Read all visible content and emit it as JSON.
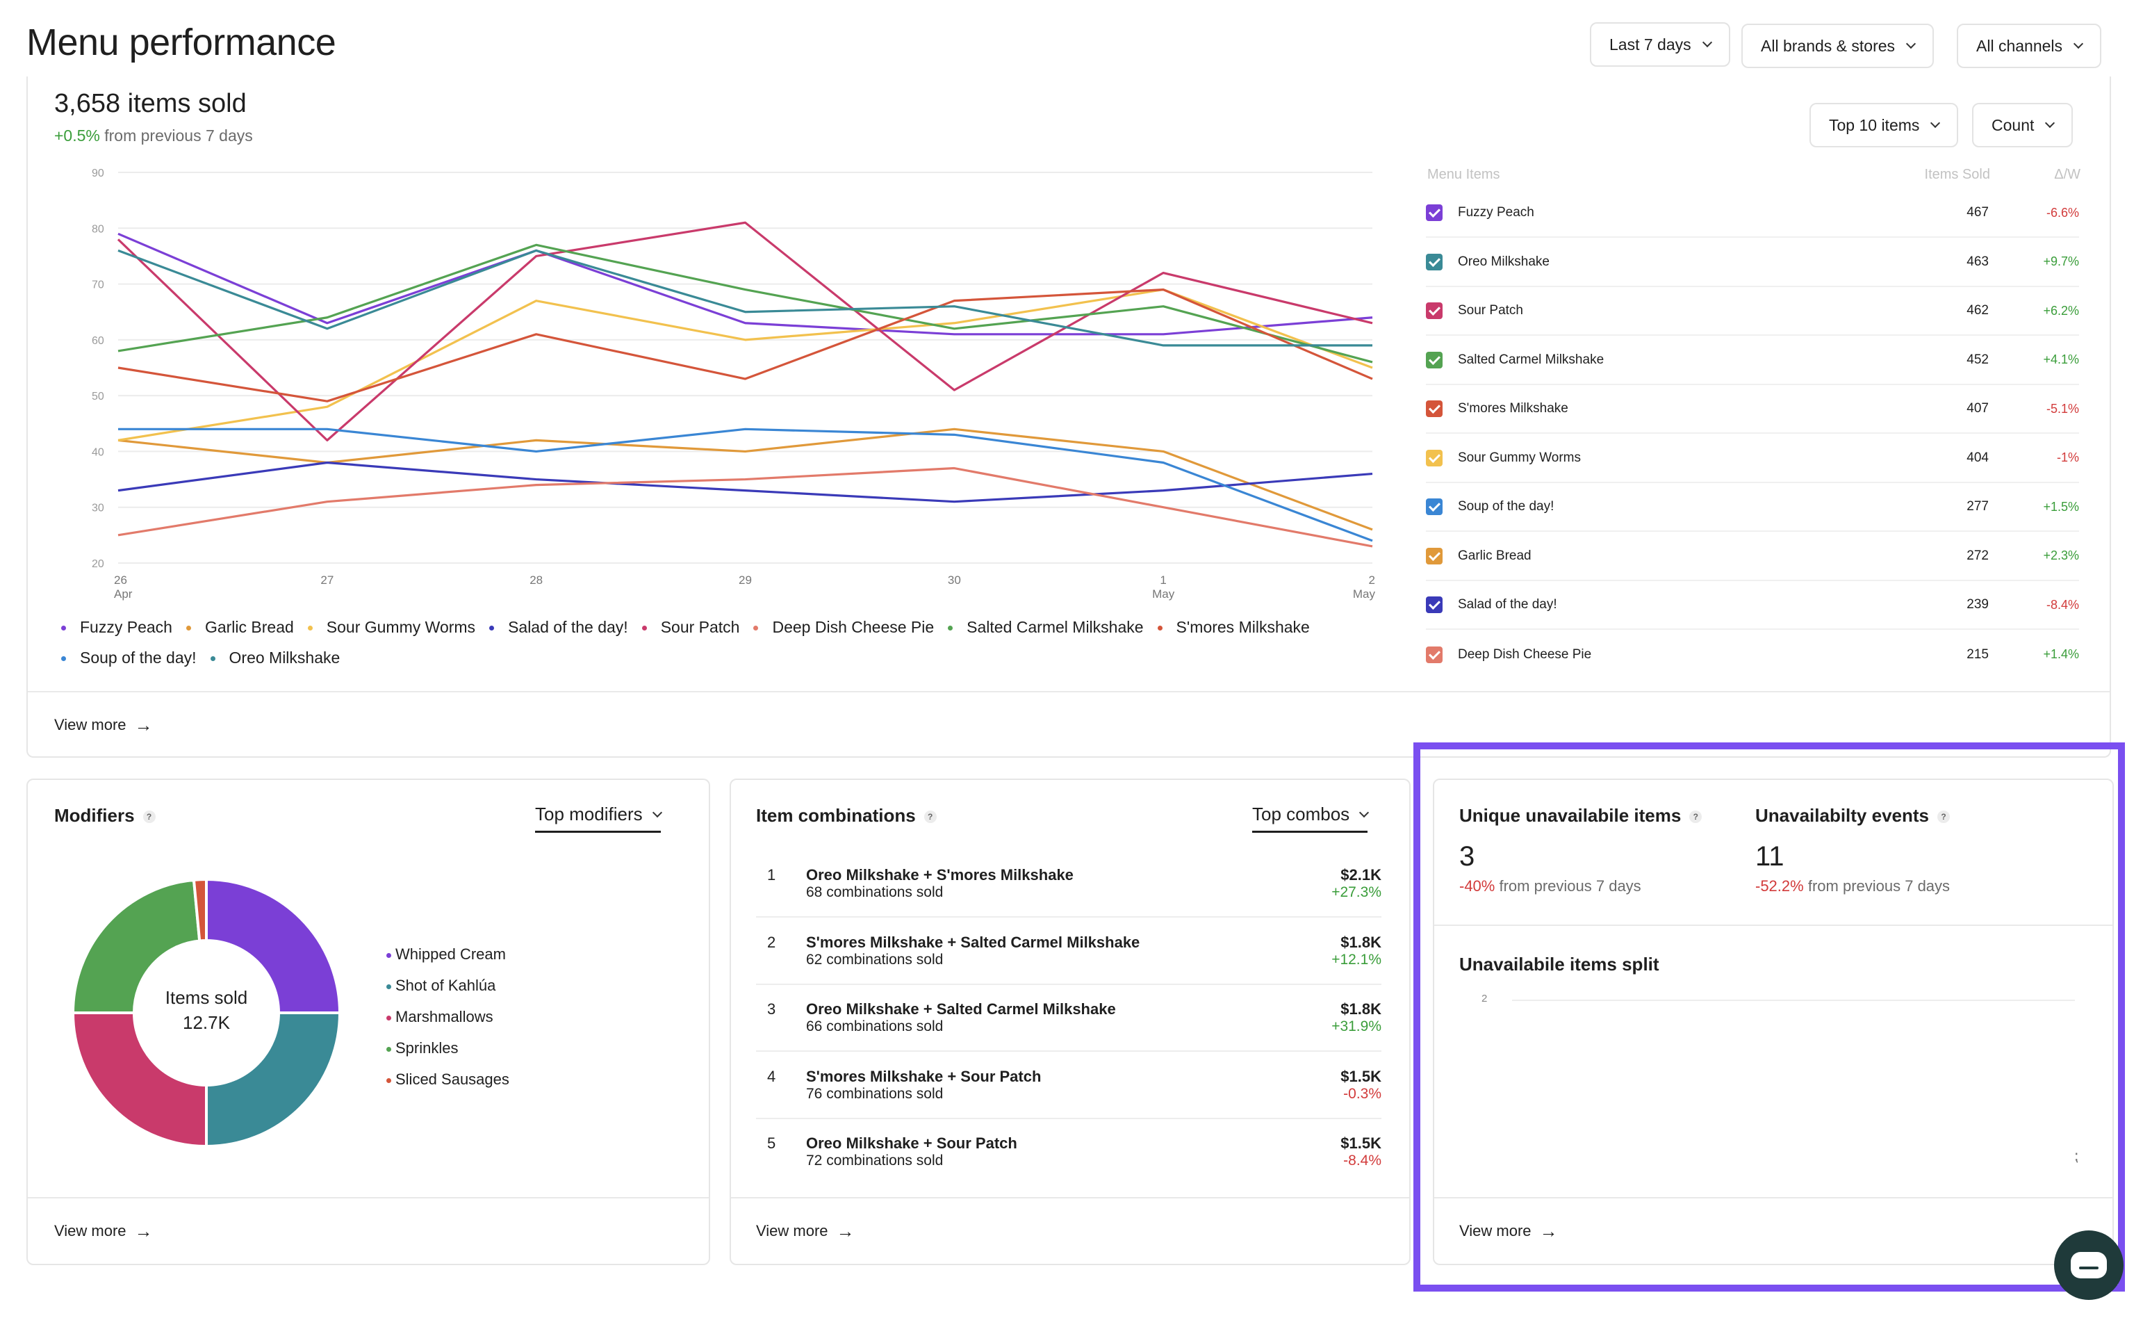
{
  "page_title": "Menu performance",
  "filters": {
    "date": "Last 7 days",
    "brands": "All brands & stores",
    "channels": "All channels"
  },
  "items_sold": {
    "headline": "3,658 items sold",
    "delta": "+0.5%",
    "delta_suffix": "from previous 7 days",
    "top_select": "Top 10 items",
    "metric_select": "Count",
    "view_more": "View more"
  },
  "menu_table": {
    "headers": {
      "name": "Menu Items",
      "sold": "Items Sold",
      "delta": "Δ/W"
    },
    "rows": [
      {
        "name": "Fuzzy Peach",
        "sold": "467",
        "delta": "-6.6%",
        "color": "#7b3fd6"
      },
      {
        "name": "Oreo Milkshake",
        "sold": "463",
        "delta": "+9.7%",
        "color": "#3a8a96"
      },
      {
        "name": "Sour Patch",
        "sold": "462",
        "delta": "+6.2%",
        "color": "#c93a6b"
      },
      {
        "name": "Salted Carmel Milkshake",
        "sold": "452",
        "delta": "+4.1%",
        "color": "#54a352"
      },
      {
        "name": "S'mores Milkshake",
        "sold": "407",
        "delta": "-5.1%",
        "color": "#d4553a"
      },
      {
        "name": "Sour Gummy Worms",
        "sold": "404",
        "delta": "-1%",
        "color": "#f2c14e"
      },
      {
        "name": "Soup of the day!",
        "sold": "277",
        "delta": "+1.5%",
        "color": "#3a86d4"
      },
      {
        "name": "Garlic Bread",
        "sold": "272",
        "delta": "+2.3%",
        "color": "#e0993a"
      },
      {
        "name": "Salad of the day!",
        "sold": "239",
        "delta": "-8.4%",
        "color": "#3a3ab8"
      },
      {
        "name": "Deep Dish Cheese Pie",
        "sold": "215",
        "delta": "+1.4%",
        "color": "#e27a6a"
      }
    ]
  },
  "chart_data": {
    "type": "line",
    "x": [
      "26 Apr",
      "27",
      "28",
      "29",
      "30",
      "1 May",
      "2 May"
    ],
    "x_ticks": [
      {
        "top": "26",
        "bottom": "Apr"
      },
      {
        "top": "27",
        "bottom": ""
      },
      {
        "top": "28",
        "bottom": ""
      },
      {
        "top": "29",
        "bottom": ""
      },
      {
        "top": "30",
        "bottom": ""
      },
      {
        "top": "1",
        "bottom": "May"
      },
      {
        "top": "2",
        "bottom": "May"
      }
    ],
    "y_ticks": [
      "90",
      "80",
      "70",
      "60",
      "50",
      "40",
      "30",
      "20"
    ],
    "ylim": [
      20,
      90
    ],
    "grid": true,
    "legend_position": "bottom",
    "series": [
      {
        "name": "Fuzzy Peach",
        "color": "#7b3fd6",
        "values": [
          79,
          63,
          76,
          63,
          61,
          61,
          64
        ]
      },
      {
        "name": "Garlic Bread",
        "color": "#e0993a",
        "values": [
          42,
          38,
          42,
          40,
          44,
          40,
          26
        ]
      },
      {
        "name": "Sour Gummy Worms",
        "color": "#f2c14e",
        "values": [
          42,
          48,
          67,
          60,
          63,
          69,
          55
        ]
      },
      {
        "name": "Salad of the day!",
        "color": "#3a3ab8",
        "values": [
          33,
          38,
          35,
          33,
          31,
          33,
          36
        ]
      },
      {
        "name": "Sour Patch",
        "color": "#c93a6b",
        "values": [
          78,
          42,
          75,
          81,
          51,
          72,
          63
        ]
      },
      {
        "name": "Deep Dish Cheese Pie",
        "color": "#e27a6a",
        "values": [
          25,
          31,
          34,
          35,
          37,
          30,
          23
        ]
      },
      {
        "name": "Salted Carmel Milkshake",
        "color": "#54a352",
        "values": [
          58,
          64,
          77,
          69,
          62,
          66,
          56
        ]
      },
      {
        "name": "S'mores Milkshake",
        "color": "#d4553a",
        "values": [
          55,
          49,
          61,
          53,
          67,
          69,
          53
        ]
      },
      {
        "name": "Soup of the day!",
        "color": "#3a86d4",
        "values": [
          44,
          44,
          40,
          44,
          43,
          38,
          24
        ]
      },
      {
        "name": "Oreo Milkshake",
        "color": "#3a8a96",
        "values": [
          76,
          62,
          76,
          65,
          66,
          59,
          59
        ]
      }
    ]
  },
  "modifiers": {
    "title": "Modifiers",
    "help": "?",
    "select": "Top modifiers",
    "center_label": "Items sold",
    "center_value": "12.7K",
    "legend": [
      {
        "name": "Whipped Cream",
        "color": "#7b3fd6",
        "share": 0.25
      },
      {
        "name": "Shot of Kahlúa",
        "color": "#3a8a96",
        "share": 0.25
      },
      {
        "name": "Marshmallows",
        "color": "#c93a6b",
        "share": 0.25
      },
      {
        "name": "Sprinkles",
        "color": "#54a352",
        "share": 0.235
      },
      {
        "name": "Sliced Sausages",
        "color": "#d4553a",
        "share": 0.015
      }
    ],
    "view_more": "View more"
  },
  "combos": {
    "title": "Item combinations",
    "help": "?",
    "select": "Top combos",
    "rows": [
      {
        "rank": "1",
        "name": "Oreo Milkshake + S'mores Milkshake",
        "sub": "68 combinations sold",
        "value": "$2.1K",
        "delta": "+27.3%"
      },
      {
        "rank": "2",
        "name": "S'mores Milkshake + Salted Carmel Milkshake",
        "sub": "62 combinations sold",
        "value": "$1.8K",
        "delta": "+12.1%"
      },
      {
        "rank": "3",
        "name": "Oreo Milkshake + Salted Carmel Milkshake",
        "sub": "66 combinations sold",
        "value": "$1.8K",
        "delta": "+31.9%"
      },
      {
        "rank": "4",
        "name": "S'mores Milkshake + Sour Patch",
        "sub": "76 combinations sold",
        "value": "$1.5K",
        "delta": "-0.3%"
      },
      {
        "rank": "5",
        "name": "Oreo Milkshake + Sour Patch",
        "sub": "72 combinations sold",
        "value": "$1.5K",
        "delta": "-8.4%"
      }
    ],
    "view_more": "View more"
  },
  "unavailable": {
    "unique_title": "Unique unavailabile items",
    "unique_value": "3",
    "unique_delta": "-40%",
    "unique_suffix": "from previous 7 days",
    "events_title": "Unavailabilty events",
    "events_value": "11",
    "events_delta": "-52.2%",
    "events_suffix": "from previous 7 days",
    "help": "?",
    "split_title": "Unavailabile items split",
    "split_axis_tick": "2",
    "view_more": "View more",
    "highlight_color": "#7a4ff0"
  }
}
